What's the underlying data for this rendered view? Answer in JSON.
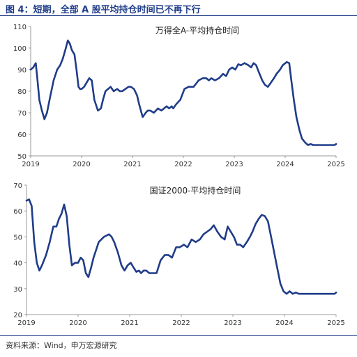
{
  "figure": {
    "title": "图 4：短期，全部 A 股平均持仓时间已不再下行",
    "source": "资料来源：Wind，申万宏源研究"
  },
  "colors": {
    "line": "#1f3c88",
    "axis": "#999999",
    "rule": "#1f3c88"
  },
  "chart_data": [
    {
      "type": "line",
      "title": "万得全A-平均持仓时间",
      "xlabel": "",
      "ylabel": "",
      "xlim": [
        2019,
        2025
      ],
      "ylim": [
        50,
        110
      ],
      "xticks": [
        2019,
        2020,
        2021,
        2022,
        2023,
        2024,
        2025
      ],
      "yticks": [
        50,
        60,
        70,
        80,
        90,
        100,
        110
      ],
      "grid": false,
      "legend": "none",
      "series": [
        {
          "x": [
            2019.0,
            2019.05,
            2019.1,
            2019.13,
            2019.17,
            2019.22,
            2019.27,
            2019.32,
            2019.38,
            2019.45,
            2019.52,
            2019.58,
            2019.63,
            2019.68,
            2019.73,
            2019.77,
            2019.81,
            2019.86,
            2019.9,
            2019.94,
            2019.97,
            2020.0,
            2020.05,
            2020.1,
            2020.15,
            2020.2,
            2020.25,
            2020.32,
            2020.38,
            2020.42,
            2020.47,
            2020.52,
            2020.57,
            2020.63,
            2020.7,
            2020.75,
            2020.8,
            2020.86,
            2020.92,
            2020.97,
            2021.03,
            2021.09,
            2021.13,
            2021.2,
            2021.26,
            2021.3,
            2021.35,
            2021.42,
            2021.5,
            2021.57,
            2021.62,
            2021.67,
            2021.72,
            2021.77,
            2021.8,
            2021.86,
            2021.94,
            2022.02,
            2022.1,
            2022.2,
            2022.3,
            2022.38,
            2022.45,
            2022.5,
            2022.55,
            2022.62,
            2022.7,
            2022.78,
            2022.84,
            2022.9,
            2022.96,
            2023.02,
            2023.08,
            2023.13,
            2023.2,
            2023.28,
            2023.33,
            2023.38,
            2023.43,
            2023.48,
            2023.55,
            2023.6,
            2023.66,
            2023.72,
            2023.78,
            2023.83,
            2023.9,
            2023.95,
            2024.03,
            2024.08,
            2024.12,
            2024.17,
            2024.22,
            2024.28,
            2024.33,
            2024.4,
            2024.45,
            2024.5,
            2024.55,
            2024.58,
            2024.62,
            2024.65,
            2024.68,
            2024.72,
            2024.75,
            2024.78,
            2024.82,
            2024.86,
            2024.88,
            2024.92,
            2024.94,
            2024.97,
            2025.0
          ],
          "values": [
            90,
            91,
            93,
            86,
            76,
            71,
            67,
            70,
            77,
            85,
            90,
            92,
            95,
            99,
            103.5,
            102,
            99,
            97,
            90,
            82,
            81,
            81,
            82,
            84,
            86,
            85,
            76,
            71,
            72,
            76,
            80,
            81,
            82,
            80,
            81,
            80,
            80,
            81,
            82,
            82,
            81,
            78,
            74,
            68,
            70,
            71,
            71,
            70,
            72,
            71,
            72,
            73,
            72,
            73,
            72,
            74,
            76,
            81,
            82,
            82,
            85,
            86,
            86,
            85,
            86,
            85,
            86,
            88,
            87,
            90,
            91,
            90,
            92.5,
            92,
            93,
            92,
            91,
            93,
            92,
            89,
            85,
            83,
            82,
            84,
            86,
            88,
            90,
            92,
            93.5,
            93,
            85,
            76,
            68,
            62,
            58,
            56,
            55,
            55.5,
            55,
            55,
            55,
            55,
            55,
            55,
            55,
            55,
            55,
            55,
            55,
            55,
            55,
            55,
            55.5
          ],
          "note_x": []
        }
      ]
    },
    {
      "type": "line",
      "title": "国证2000-平均持仓时间",
      "xlabel": "",
      "ylabel": "",
      "xlim": [
        2019,
        2025
      ],
      "ylim": [
        20,
        70
      ],
      "xticks": [
        2019,
        2020,
        2021,
        2022,
        2023,
        2024,
        2025
      ],
      "yticks": [
        20,
        30,
        40,
        50,
        60,
        70
      ],
      "grid": false,
      "legend": "none",
      "series": [
        {
          "x": [
            2019.0,
            2019.05,
            2019.1,
            2019.15,
            2019.2,
            2019.25,
            2019.3,
            2019.38,
            2019.45,
            2019.52,
            2019.58,
            2019.63,
            2019.68,
            2019.73,
            2019.78,
            2019.83,
            2019.88,
            2019.94,
            2020.0,
            2020.05,
            2020.1,
            2020.15,
            2020.2,
            2020.25,
            2020.3,
            2020.35,
            2020.4,
            2020.45,
            2020.5,
            2020.55,
            2020.6,
            2020.65,
            2020.7,
            2020.77,
            2020.84,
            2020.9,
            2020.96,
            2021.02,
            2021.08,
            2021.13,
            2021.18,
            2021.22,
            2021.27,
            2021.32,
            2021.38,
            2021.45,
            2021.52,
            2021.6,
            2021.68,
            2021.75,
            2021.82,
            2021.9,
            2021.97,
            2022.05,
            2022.12,
            2022.2,
            2022.28,
            2022.36,
            2022.43,
            2022.5,
            2022.57,
            2022.63,
            2022.7,
            2022.77,
            2022.84,
            2022.9,
            2022.96,
            2023.02,
            2023.08,
            2023.14,
            2023.2,
            2023.27,
            2023.33,
            2023.38,
            2023.44,
            2023.5,
            2023.56,
            2023.62,
            2023.68,
            2023.74,
            2023.8,
            2023.86,
            2023.92,
            2023.98,
            2024.04,
            2024.1,
            2024.16,
            2024.22,
            2024.28,
            2024.34,
            2024.4,
            2024.46,
            2024.52,
            2024.58,
            2024.62,
            2024.66,
            2024.7,
            2024.74,
            2024.78,
            2024.82,
            2024.86,
            2024.9,
            2024.94,
            2024.97,
            2025.0
          ],
          "values": [
            64,
            64.5,
            62,
            48,
            40,
            37,
            39,
            43,
            48,
            54,
            54,
            57,
            59,
            62.5,
            58,
            47,
            39,
            40,
            40,
            42,
            41,
            36,
            34.5,
            38,
            42,
            45,
            48,
            49,
            50,
            50.5,
            51,
            50,
            48,
            44,
            39,
            37,
            39,
            40,
            38,
            36.5,
            37,
            36,
            37,
            37,
            36,
            36,
            36,
            41,
            43,
            43,
            42,
            46,
            46,
            47,
            46,
            49,
            48,
            49,
            51,
            52,
            53,
            54.5,
            52,
            50,
            49,
            54,
            52,
            50,
            47,
            47,
            46,
            48,
            50,
            52,
            55,
            57,
            58.5,
            58,
            56,
            50,
            44,
            38,
            32,
            29,
            28,
            29,
            28,
            28.5,
            28,
            28,
            28,
            28,
            28,
            28,
            28,
            28,
            28,
            28,
            28,
            28,
            28,
            28,
            28,
            28,
            28.5
          ]
        }
      ]
    }
  ]
}
